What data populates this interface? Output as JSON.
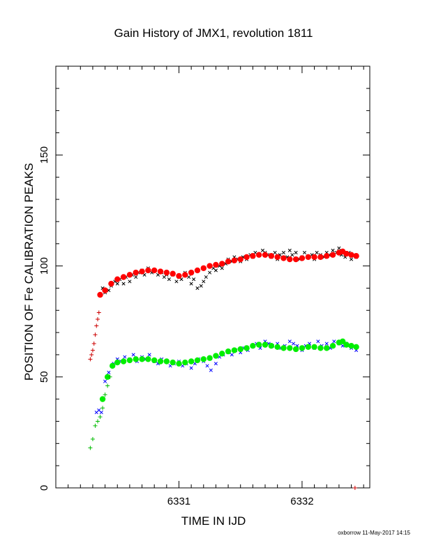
{
  "chart_data": {
    "type": "scatter",
    "title": "Gain History of JMX1, revolution 1811",
    "xlabel": "TIME IN IJD",
    "ylabel": "POSITION OF Fe CALIBRATION PEAKS",
    "xlim": [
      6330.0,
      6332.55
    ],
    "ylim": [
      0,
      190
    ],
    "x_ticks": [
      {
        "value": 6331,
        "label": "6331"
      },
      {
        "value": 6332,
        "label": "6332"
      }
    ],
    "y_ticks": [
      {
        "value": 0,
        "label": "0"
      },
      {
        "value": 50,
        "label": "50"
      },
      {
        "value": 100,
        "label": "100"
      },
      {
        "value": 150,
        "label": "150"
      }
    ],
    "grid": false,
    "series": [
      {
        "marker": "x",
        "color": "#000000",
        "points": [
          [
            6330.36,
            87
          ],
          [
            6330.38,
            90
          ],
          [
            6330.4,
            88
          ],
          [
            6330.43,
            89
          ],
          [
            6330.45,
            91
          ],
          [
            6330.48,
            93
          ],
          [
            6330.5,
            92
          ],
          [
            6330.52,
            94
          ],
          [
            6330.55,
            92
          ],
          [
            6330.57,
            95
          ],
          [
            6330.6,
            93
          ],
          [
            6330.62,
            96
          ],
          [
            6330.65,
            95
          ],
          [
            6330.67,
            97
          ],
          [
            6330.7,
            98
          ],
          [
            6330.72,
            96
          ],
          [
            6330.75,
            99
          ],
          [
            6330.78,
            97
          ],
          [
            6330.8,
            98
          ],
          [
            6330.83,
            96
          ],
          [
            6330.86,
            97
          ],
          [
            6330.88,
            95
          ],
          [
            6330.9,
            96
          ],
          [
            6330.92,
            94
          ],
          [
            6330.95,
            96
          ],
          [
            6330.98,
            93
          ],
          [
            6331.0,
            95
          ],
          [
            6331.02,
            94
          ],
          [
            6331.05,
            97
          ],
          [
            6331.08,
            95
          ],
          [
            6331.1,
            92
          ],
          [
            6331.12,
            94
          ],
          [
            6331.15,
            90
          ],
          [
            6331.18,
            91
          ],
          [
            6331.2,
            93
          ],
          [
            6331.22,
            95
          ],
          [
            6331.25,
            97
          ],
          [
            6331.28,
            99
          ],
          [
            6331.3,
            98
          ],
          [
            6331.33,
            100
          ],
          [
            6331.35,
            99
          ],
          [
            6331.38,
            101
          ],
          [
            6331.4,
            103
          ],
          [
            6331.43,
            102
          ],
          [
            6331.45,
            104
          ],
          [
            6331.48,
            103
          ],
          [
            6331.5,
            102
          ],
          [
            6331.52,
            104
          ],
          [
            6331.55,
            103
          ],
          [
            6331.58,
            105
          ],
          [
            6331.6,
            104
          ],
          [
            6331.62,
            106
          ],
          [
            6331.65,
            105
          ],
          [
            6331.68,
            107
          ],
          [
            6331.7,
            106
          ],
          [
            6331.72,
            105
          ],
          [
            6331.75,
            104
          ],
          [
            6331.78,
            106
          ],
          [
            6331.8,
            103
          ],
          [
            6331.82,
            105
          ],
          [
            6331.85,
            106
          ],
          [
            6331.88,
            104
          ],
          [
            6331.9,
            107
          ],
          [
            6331.92,
            105
          ],
          [
            6331.95,
            106
          ],
          [
            6331.98,
            103
          ],
          [
            6332.0,
            104
          ],
          [
            6332.02,
            106
          ],
          [
            6332.05,
            104
          ],
          [
            6332.08,
            105
          ],
          [
            6332.1,
            103
          ],
          [
            6332.12,
            106
          ],
          [
            6332.15,
            105
          ],
          [
            6332.18,
            104
          ],
          [
            6332.2,
            106
          ],
          [
            6332.22,
            105
          ],
          [
            6332.25,
            107
          ],
          [
            6332.28,
            106
          ],
          [
            6332.3,
            108
          ],
          [
            6332.32,
            105
          ],
          [
            6332.35,
            104
          ],
          [
            6332.38,
            106
          ],
          [
            6332.4,
            103
          ],
          [
            6332.42,
            105
          ],
          [
            6332.44,
            104
          ]
        ]
      },
      {
        "marker": "x",
        "color": "#0000ff",
        "points": [
          [
            6330.33,
            34
          ],
          [
            6330.35,
            35
          ],
          [
            6330.37,
            34
          ],
          [
            6330.4,
            48
          ],
          [
            6330.43,
            52
          ],
          [
            6330.47,
            56
          ],
          [
            6330.5,
            58
          ],
          [
            6330.53,
            57
          ],
          [
            6330.56,
            59
          ],
          [
            6330.6,
            58
          ],
          [
            6330.63,
            60
          ],
          [
            6330.66,
            57
          ],
          [
            6330.7,
            59
          ],
          [
            6330.73,
            58
          ],
          [
            6330.76,
            60
          ],
          [
            6330.8,
            57
          ],
          [
            6330.83,
            56
          ],
          [
            6330.86,
            58
          ],
          [
            6330.9,
            57
          ],
          [
            6330.93,
            55
          ],
          [
            6330.96,
            56
          ],
          [
            6331.0,
            57
          ],
          [
            6331.03,
            55
          ],
          [
            6331.06,
            56
          ],
          [
            6331.1,
            54
          ],
          [
            6331.13,
            56
          ],
          [
            6331.16,
            58
          ],
          [
            6331.2,
            57
          ],
          [
            6331.23,
            55
          ],
          [
            6331.26,
            53
          ],
          [
            6331.3,
            56
          ],
          [
            6331.33,
            59
          ],
          [
            6331.36,
            60
          ],
          [
            6331.4,
            61
          ],
          [
            6331.43,
            60
          ],
          [
            6331.46,
            62
          ],
          [
            6331.5,
            61
          ],
          [
            6331.53,
            63
          ],
          [
            6331.56,
            62
          ],
          [
            6331.6,
            64
          ],
          [
            6331.63,
            65
          ],
          [
            6331.66,
            63
          ],
          [
            6331.7,
            66
          ],
          [
            6331.73,
            65
          ],
          [
            6331.76,
            64
          ],
          [
            6331.8,
            65
          ],
          [
            6331.83,
            63
          ],
          [
            6331.86,
            64
          ],
          [
            6331.9,
            66
          ],
          [
            6331.93,
            65
          ],
          [
            6331.96,
            64
          ],
          [
            6332.0,
            62
          ],
          [
            6332.03,
            64
          ],
          [
            6332.06,
            65
          ],
          [
            6332.1,
            63
          ],
          [
            6332.13,
            66
          ],
          [
            6332.16,
            64
          ],
          [
            6332.2,
            65
          ],
          [
            6332.23,
            63
          ],
          [
            6332.26,
            66
          ],
          [
            6332.3,
            65
          ],
          [
            6332.33,
            64
          ],
          [
            6332.36,
            65
          ],
          [
            6332.4,
            63
          ],
          [
            6332.44,
            62
          ]
        ]
      },
      {
        "marker": "circle",
        "color": "#ff0000",
        "points": [
          [
            6330.36,
            87
          ],
          [
            6330.4,
            89
          ],
          [
            6330.45,
            92
          ],
          [
            6330.5,
            94
          ],
          [
            6330.55,
            95
          ],
          [
            6330.6,
            96
          ],
          [
            6330.65,
            97
          ],
          [
            6330.7,
            97.5
          ],
          [
            6330.75,
            98
          ],
          [
            6330.8,
            98
          ],
          [
            6330.85,
            97.5
          ],
          [
            6330.9,
            97
          ],
          [
            6330.95,
            96.5
          ],
          [
            6331.0,
            95.5
          ],
          [
            6331.05,
            96
          ],
          [
            6331.1,
            97
          ],
          [
            6331.15,
            98
          ],
          [
            6331.2,
            99
          ],
          [
            6331.25,
            100
          ],
          [
            6331.3,
            100.5
          ],
          [
            6331.35,
            101
          ],
          [
            6331.4,
            102
          ],
          [
            6331.45,
            102.5
          ],
          [
            6331.5,
            103
          ],
          [
            6331.55,
            104
          ],
          [
            6331.6,
            104.5
          ],
          [
            6331.65,
            105
          ],
          [
            6331.7,
            105
          ],
          [
            6331.75,
            104.5
          ],
          [
            6331.8,
            104
          ],
          [
            6331.85,
            103.5
          ],
          [
            6331.9,
            103
          ],
          [
            6331.95,
            103
          ],
          [
            6332.0,
            103.5
          ],
          [
            6332.05,
            104
          ],
          [
            6332.1,
            104
          ],
          [
            6332.15,
            104
          ],
          [
            6332.2,
            104.5
          ],
          [
            6332.25,
            105
          ],
          [
            6332.3,
            106
          ],
          [
            6332.33,
            106.5
          ],
          [
            6332.36,
            105.5
          ],
          [
            6332.4,
            105
          ],
          [
            6332.44,
            104.5
          ]
        ]
      },
      {
        "marker": "circle",
        "color": "#00ee00",
        "points": [
          [
            6330.38,
            40
          ],
          [
            6330.42,
            50
          ],
          [
            6330.46,
            55
          ],
          [
            6330.5,
            56.5
          ],
          [
            6330.55,
            57
          ],
          [
            6330.6,
            57.5
          ],
          [
            6330.65,
            58
          ],
          [
            6330.7,
            58
          ],
          [
            6330.75,
            58
          ],
          [
            6330.8,
            57.5
          ],
          [
            6330.85,
            57
          ],
          [
            6330.9,
            57
          ],
          [
            6330.95,
            56.5
          ],
          [
            6331.0,
            56
          ],
          [
            6331.05,
            56.5
          ],
          [
            6331.1,
            57
          ],
          [
            6331.15,
            57.5
          ],
          [
            6331.2,
            58
          ],
          [
            6331.25,
            58.5
          ],
          [
            6331.3,
            59.5
          ],
          [
            6331.35,
            60.5
          ],
          [
            6331.4,
            61.5
          ],
          [
            6331.45,
            62
          ],
          [
            6331.5,
            62.5
          ],
          [
            6331.55,
            63
          ],
          [
            6331.6,
            64
          ],
          [
            6331.65,
            64.5
          ],
          [
            6331.7,
            64.5
          ],
          [
            6331.75,
            64
          ],
          [
            6331.8,
            63.5
          ],
          [
            6331.85,
            63
          ],
          [
            6331.9,
            63
          ],
          [
            6331.95,
            62.5
          ],
          [
            6332.0,
            63
          ],
          [
            6332.05,
            63.5
          ],
          [
            6332.1,
            63.5
          ],
          [
            6332.15,
            63
          ],
          [
            6332.2,
            63
          ],
          [
            6332.25,
            64
          ],
          [
            6332.3,
            65.5
          ],
          [
            6332.33,
            66
          ],
          [
            6332.36,
            64.5
          ],
          [
            6332.4,
            64
          ],
          [
            6332.44,
            63.5
          ]
        ]
      },
      {
        "marker": "plus",
        "color": "#cc0000",
        "points": [
          [
            6330.28,
            58
          ],
          [
            6330.29,
            60
          ],
          [
            6330.3,
            62
          ],
          [
            6330.31,
            65
          ],
          [
            6330.32,
            69
          ],
          [
            6330.33,
            73
          ],
          [
            6330.34,
            76
          ],
          [
            6330.35,
            79
          ]
        ]
      },
      {
        "marker": "plus",
        "color": "#00bb00",
        "points": [
          [
            6330.28,
            18
          ],
          [
            6330.3,
            22
          ],
          [
            6330.32,
            28
          ],
          [
            6330.34,
            30
          ],
          [
            6330.36,
            32
          ],
          [
            6330.38,
            36
          ],
          [
            6330.4,
            42
          ],
          [
            6330.42,
            46
          ],
          [
            6330.44,
            50
          ]
        ]
      },
      {
        "marker": "plus",
        "color": "#cc0000",
        "points": [
          [
            6332.43,
            0
          ]
        ]
      }
    ]
  },
  "footer": {
    "text": "oxborrow 11-May-2017 14:15"
  }
}
